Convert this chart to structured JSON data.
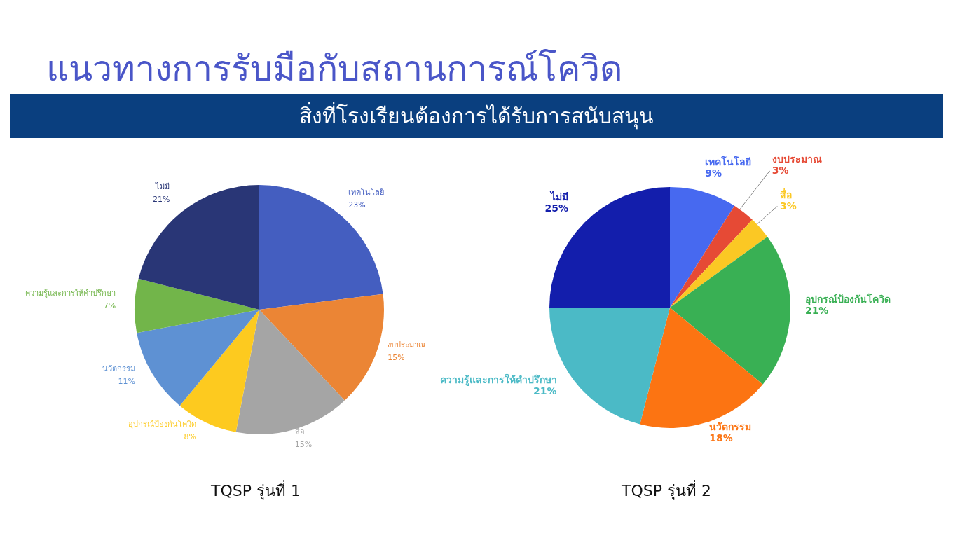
{
  "chart_data": [
    {
      "type": "pie",
      "title": "TQSP รุ่นที่ 1",
      "annotations": [
        "แนวทางการรับมือกับสถานการณ์โควิด",
        "สิ่งที่โรงเรียนต้องการได้รับการสนับสนุน"
      ],
      "categories": [
        "เทคโนโลยี",
        "งบประมาณ",
        "สื่อ",
        "อุปกรณ์ป้องกันโควิด",
        "นวัตกรรม",
        "ความรู้และการให้คำปรึกษา",
        "ไม่มี"
      ],
      "values": [
        23,
        15,
        15,
        8,
        11,
        7,
        21
      ],
      "value_labels": [
        "23%",
        "15%",
        "15%",
        "8%",
        "11%",
        "7%",
        "21%"
      ],
      "colors": [
        "#445ec0",
        "#eb8535",
        "#a5a5a5",
        "#fdca1f",
        "#5e91d3",
        "#72b54a",
        "#293676"
      ]
    },
    {
      "type": "pie",
      "title": "TQSP รุ่นที่ 2",
      "categories": [
        "เทคโนโลยี",
        "งบประมาณ",
        "สื่อ",
        "อุปกรณ์ป้องกันโควิด",
        "นวัตกรรม",
        "ความรู้และการให้คำปรึกษา",
        "ไม่มี"
      ],
      "values": [
        9,
        3,
        3,
        21,
        18,
        21,
        25
      ],
      "value_labels": [
        "9%",
        "3%",
        "3%",
        "21%",
        "18%",
        "21%",
        "25%"
      ],
      "colors": [
        "#4769f0",
        "#e64a35",
        "#fbc824",
        "#39b054",
        "#fc7412",
        "#4bbac6",
        "#131eac"
      ]
    }
  ]
}
